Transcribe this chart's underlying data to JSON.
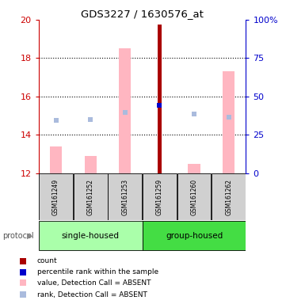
{
  "title": "GDS3227 / 1630576_at",
  "samples": [
    "GSM161249",
    "GSM161252",
    "GSM161253",
    "GSM161259",
    "GSM161260",
    "GSM161262"
  ],
  "ylim_left": [
    12,
    20
  ],
  "ylim_right": [
    0,
    100
  ],
  "yticks_left": [
    12,
    14,
    16,
    18,
    20
  ],
  "yticks_right": [
    0,
    25,
    50,
    75,
    100
  ],
  "bar_bottom": 12,
  "value_absent_tops": [
    13.4,
    12.9,
    18.5,
    null,
    12.5,
    17.3
  ],
  "rank_absent_y": [
    14.75,
    14.82,
    15.18,
    null,
    15.08,
    14.92
  ],
  "count_top": [
    null,
    null,
    null,
    19.75,
    null,
    null
  ],
  "percentile_rank_y": [
    null,
    null,
    null,
    15.55,
    null,
    null
  ],
  "count_color": "#AA0000",
  "value_absent_color": "#FFB6C1",
  "rank_absent_color": "#AABBDD",
  "percentile_color": "#0000CC",
  "grid_color": "#000000",
  "title_color": "#000000",
  "left_axis_color": "#CC0000",
  "right_axis_color": "#0000CC",
  "pink_bar_width": 0.35,
  "red_bar_width": 0.1,
  "group_single_color": "#AAFFAA",
  "group_grouped_color": "#44DD44",
  "legend_items": [
    {
      "label": "count",
      "color": "#AA0000"
    },
    {
      "label": "percentile rank within the sample",
      "color": "#0000CC"
    },
    {
      "label": "value, Detection Call = ABSENT",
      "color": "#FFB6C1"
    },
    {
      "label": "rank, Detection Call = ABSENT",
      "color": "#AABBDD"
    }
  ]
}
